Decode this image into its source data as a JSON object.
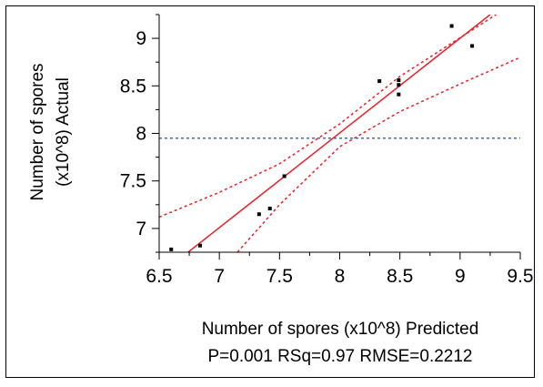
{
  "chart_data": {
    "type": "scatter",
    "ylabel_lines": [
      "Number of spores",
      "(x10^8) Actual"
    ],
    "xlabel": "Number of spores (x10^8) Predicted",
    "stats": "P=0.001 RSq=0.97 RMSE=0.2212",
    "xlim": [
      6.5,
      9.5
    ],
    "ylim": [
      6.75,
      9.25
    ],
    "xticks": [
      "6.5",
      "7",
      "7.5",
      "8",
      "8.5",
      "9",
      "9.5"
    ],
    "yticks": [
      "7",
      "7.5",
      "8",
      "8.5",
      "9"
    ],
    "x": [
      6.6,
      6.84,
      7.33,
      7.42,
      7.54,
      8.33,
      8.49,
      8.49,
      8.49,
      8.93,
      9.1
    ],
    "y": [
      6.78,
      6.82,
      7.15,
      7.21,
      7.55,
      8.55,
      8.41,
      8.51,
      8.56,
      9.13,
      8.92
    ],
    "fit_line": {
      "x1": 6.74,
      "y1": 6.75,
      "x2": 9.25,
      "y2": 9.25
    },
    "mean_line": {
      "y": 7.95
    },
    "confidence_upper": [
      [
        6.5,
        7.12
      ],
      [
        7.0,
        7.38
      ],
      [
        7.5,
        7.68
      ],
      [
        8.0,
        8.1
      ],
      [
        8.5,
        8.6
      ],
      [
        9.3,
        9.25
      ]
    ],
    "confidence_lower": [
      [
        7.15,
        6.75
      ],
      [
        7.5,
        7.25
      ],
      [
        8.0,
        7.86
      ],
      [
        8.5,
        8.23
      ],
      [
        9.0,
        8.52
      ],
      [
        9.5,
        8.8
      ]
    ],
    "colors": {
      "fit": "#e8212a",
      "mean": "#3366ff",
      "point": "#000000",
      "axis": "#000000"
    }
  }
}
